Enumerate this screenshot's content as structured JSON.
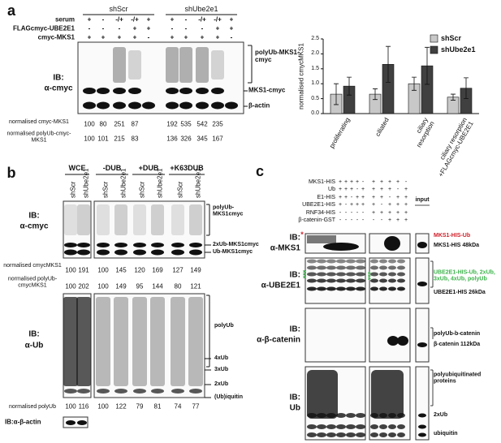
{
  "panel_a": {
    "label": "a",
    "groups": [
      "shScr",
      "shUbe2e1"
    ],
    "conditions": [
      {
        "name": "serum",
        "signs": [
          "+",
          "-",
          "-/+",
          "-/+",
          "+",
          "+",
          "-",
          "-/+",
          "-/+",
          "+"
        ]
      },
      {
        "name": "FLAGcmyc-UBE2E1",
        "signs": [
          "-",
          "-",
          "-",
          "+",
          "+",
          "-",
          "-",
          "-",
          "+",
          "+"
        ]
      },
      {
        "name": "cmyc-MKS1",
        "signs": [
          "+",
          "+",
          "+",
          "+",
          "-",
          "+",
          "+",
          "+",
          "+",
          "-"
        ]
      }
    ],
    "ib": "IB:",
    "antibody": "α-cmyc",
    "bands": [
      "polyUb-MKS1-cmyc",
      "MKS1-cmyc",
      "β-actin"
    ],
    "quant": [
      {
        "label": "normalised cmyc-MKS1",
        "values": [
          100,
          80,
          251,
          87,
          192,
          535,
          542,
          235
        ]
      },
      {
        "label": "normalised polyUb-cmyc-MKS1",
        "values": [
          100,
          101,
          215,
          83,
          136,
          326,
          345,
          167
        ]
      }
    ]
  },
  "chart_data": {
    "type": "bar",
    "ylabel": "normalised cmycMKS1",
    "categories": [
      "proliferating",
      "ciliated",
      "ciliary resorption",
      "ciliary resorption +FLAGcmyc-UBE2E1"
    ],
    "series": [
      {
        "name": "shScr",
        "color": "#c8c8c8",
        "values": [
          0.65,
          0.65,
          1.0,
          0.55
        ],
        "errors": [
          0.35,
          0.18,
          0.22,
          0.1
        ]
      },
      {
        "name": "shUbe2e1",
        "color": "#404040",
        "values": [
          0.92,
          1.65,
          1.6,
          0.85
        ],
        "errors": [
          0.3,
          0.6,
          0.62,
          0.35
        ]
      }
    ],
    "ylim": [
      0,
      2.5
    ],
    "yticks": [
      {
        "value": 0,
        "label": "0.0"
      },
      {
        "value": 0.5,
        "label": "0.5"
      },
      {
        "value": 1,
        "label": "1.0"
      },
      {
        "value": 1.5,
        "label": "1.5"
      },
      {
        "value": 2,
        "label": "2.0"
      },
      {
        "value": 2.5,
        "label": "2.5"
      }
    ]
  },
  "panel_b": {
    "label": "b",
    "treatments": [
      "WCE",
      "-DUB",
      "+DUB",
      "+K63DUB"
    ],
    "lanes": [
      "shScr",
      "shUbe2e1",
      "shScr",
      "shUbe2e1",
      "shScr",
      "shUbe2e1",
      "shScr",
      "shUbe2e1"
    ],
    "blot1": {
      "ib": "IB:",
      "antibody": "α-cmyc",
      "bands": [
        "polyUb-MKS1cmyc",
        "2xUb-MKS1cmyc",
        "Ub-MKS1cmyc"
      ]
    },
    "quant": [
      {
        "label": "normalised cmycMKS1",
        "values": [
          100,
          191,
          100,
          145,
          120,
          169,
          127,
          149
        ]
      },
      {
        "label": "normalised polyUb-cmycMKS1",
        "values": [
          100,
          202,
          100,
          149,
          95,
          144,
          80,
          121
        ]
      }
    ],
    "blot2": {
      "ib": "IB:",
      "antibody": "α-Ub",
      "bands": [
        "polyUb",
        "4xUb",
        "3xUb",
        "2xUb",
        "(Ub)iquitin"
      ]
    },
    "quant2": {
      "label": "normalised polyUb",
      "values": [
        100,
        116,
        100,
        122,
        79,
        81,
        74,
        77
      ]
    },
    "actin": "IB:α-β-actin"
  },
  "panel_c": {
    "label": "c",
    "conditions": [
      {
        "name": "MKS1-HIS",
        "signs": [
          "+",
          "+",
          "+",
          "+",
          "-",
          "+",
          "+",
          "+",
          "+",
          "-"
        ]
      },
      {
        "name": "Ub",
        "signs": [
          "+",
          "+",
          "+",
          "-",
          "+",
          "+",
          "+",
          "+",
          "-",
          "+"
        ]
      },
      {
        "name": "E1-HIS",
        "signs": [
          "+",
          "+",
          "-",
          "+",
          "+",
          "+",
          "+",
          "-",
          "+",
          "+"
        ]
      },
      {
        "name": "UBE2E1-HIS",
        "signs": [
          "+",
          "-",
          "+",
          "+",
          "+",
          "+",
          "-",
          "+",
          "+",
          "+"
        ]
      },
      {
        "name": "RNF34-HIS",
        "signs": [
          "-",
          "-",
          "-",
          "-",
          "-",
          "+",
          "+",
          "+",
          "+",
          "+"
        ]
      },
      {
        "name": "β-catenin-GST",
        "signs": [
          "-",
          "-",
          "-",
          "-",
          "-",
          "-",
          "-",
          "+",
          "+",
          "+"
        ]
      }
    ],
    "input": "input",
    "blots": [
      {
        "ib": "IB:",
        "antibody": "α-MKS1",
        "marker": "*",
        "labels": [
          "MKS1-HIS-Ub",
          "MKS1-HIS 48kDa"
        ]
      },
      {
        "ib": "IB:",
        "antibody": "α-UBE2E1",
        "marker": "***",
        "labels": [
          "UBE2E1-HIS-Ub, 2xUb, 3xUb, 4xUb, polyUb",
          "UBE2E1-HIS 26kDa"
        ]
      },
      {
        "ib": "IB:",
        "antibody": "α-β-catenin",
        "labels": [
          "polyUb-b-catenin",
          "β-catenin 112kDa"
        ]
      },
      {
        "ib": "IB:",
        "antibody": "Ub",
        "labels": [
          "polyubiquitinated proteins",
          "2xUb",
          "ubiquitin"
        ]
      }
    ]
  }
}
